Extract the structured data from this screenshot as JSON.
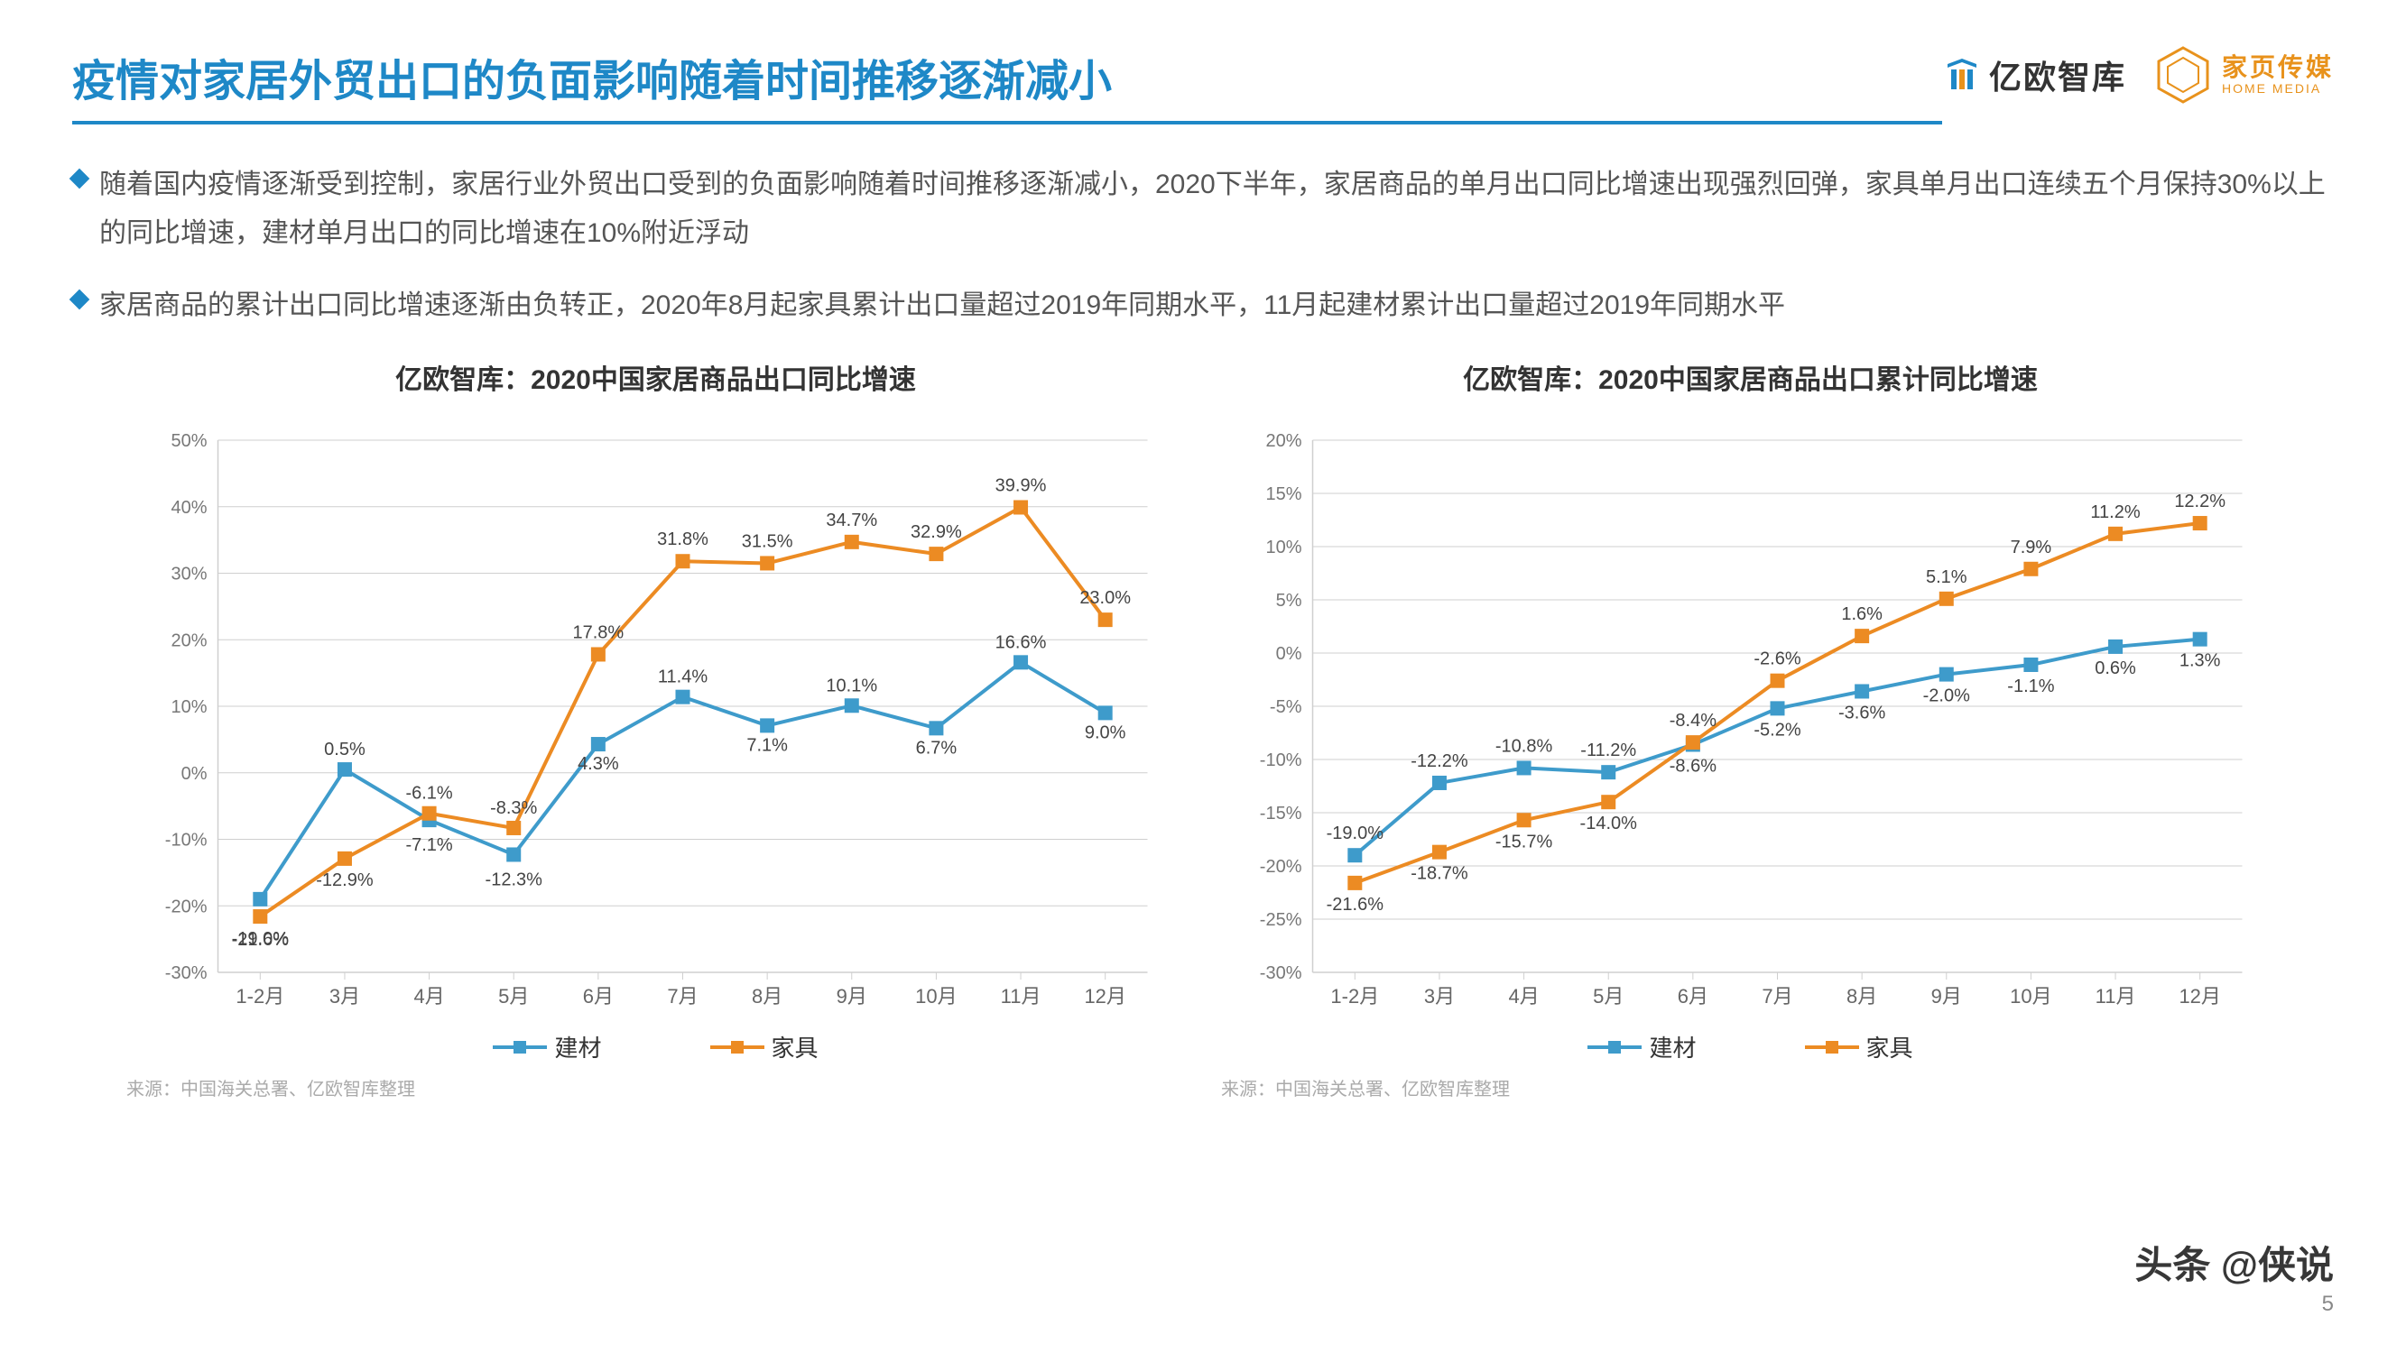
{
  "title": "疫情对家居外贸出口的负面影响随着时间推移逐渐减小",
  "logos": {
    "brand1_text": "亿欧智库",
    "brand2_cn": "家页传媒",
    "brand2_en": "HOME MEDIA"
  },
  "bullets": [
    "随着国内疫情逐渐受到控制，家居行业外贸出口受到的负面影响随着时间推移逐渐减小，2020下半年，家居商品的单月出口同比增速出现强烈回弹，家具单月出口连续五个月保持30%以上的同比增速，建材单月出口的同比增速在10%附近浮动",
    "家居商品的累计出口同比增速逐渐由负转正，2020年8月起家具累计出口量超过2019年同期水平，11月起建材累计出口量超过2019年同期水平"
  ],
  "charts": [
    {
      "title": "亿欧智库：2020中国家居商品出口同比增速",
      "type": "line",
      "categories": [
        "1-2月",
        "3月",
        "4月",
        "5月",
        "6月",
        "7月",
        "8月",
        "9月",
        "10月",
        "11月",
        "12月"
      ],
      "ymin": -30,
      "ymax": 50,
      "ystep": 10,
      "series": [
        {
          "name": "建材",
          "color": "#3E9BCB",
          "values": [
            -19.0,
            0.5,
            -7.1,
            -12.3,
            4.3,
            11.4,
            7.1,
            10.1,
            6.7,
            16.6,
            9.0
          ],
          "labels": [
            "-19.0%",
            "0.5%",
            "-7.1%",
            "-12.3%",
            "4.3%",
            "11.4%",
            "7.1%",
            "10.1%",
            "6.7%",
            "16.6%",
            "9.0%"
          ],
          "label_dy": [
            50,
            -16,
            34,
            34,
            28,
            -16,
            28,
            -16,
            28,
            -16,
            28
          ]
        },
        {
          "name": "家具",
          "color": "#EC8B23",
          "values": [
            -21.6,
            -12.9,
            -6.1,
            -8.3,
            17.8,
            31.8,
            31.5,
            34.7,
            32.9,
            39.9,
            23.0
          ],
          "labels": [
            "-21.6%",
            "-12.9%",
            "-6.1%",
            "-8.3%",
            "17.8%",
            "31.8%",
            "31.5%",
            "34.7%",
            "32.9%",
            "39.9%",
            "23.0%"
          ],
          "label_dy": [
            32,
            30,
            -16,
            -16,
            -18,
            -18,
            -18,
            -18,
            -18,
            -18,
            -18
          ]
        }
      ],
      "source": "来源：中国海关总署、亿欧智库整理"
    },
    {
      "title": "亿欧智库：2020中国家居商品出口累计同比增速",
      "type": "line",
      "categories": [
        "1-2月",
        "3月",
        "4月",
        "5月",
        "6月",
        "7月",
        "8月",
        "9月",
        "10月",
        "11月",
        "12月"
      ],
      "ymin": -30,
      "ymax": 20,
      "ystep": 5,
      "series": [
        {
          "name": "建材",
          "color": "#3E9BCB",
          "values": [
            -19.0,
            -12.2,
            -10.8,
            -11.2,
            -8.6,
            -5.2,
            -3.6,
            -2.0,
            -1.1,
            0.6,
            1.3
          ],
          "labels": [
            "-19.0%",
            "-12.2%",
            "-10.8%",
            "-11.2%",
            "-8.6%",
            "-5.2%",
            "-3.6%",
            "-2.0%",
            "-1.1%",
            "0.6%",
            "1.3%"
          ],
          "label_dy": [
            -18,
            -18,
            -18,
            -18,
            30,
            30,
            30,
            30,
            30,
            30,
            30
          ]
        },
        {
          "name": "家具",
          "color": "#EC8B23",
          "values": [
            -21.6,
            -18.7,
            -15.7,
            -14.0,
            -8.4,
            -2.6,
            1.6,
            5.1,
            7.9,
            11.2,
            12.2
          ],
          "labels": [
            "-21.6%",
            "-18.7%",
            "-15.7%",
            "-14.0%",
            "-8.4%",
            "-2.6%",
            "1.6%",
            "5.1%",
            "7.9%",
            "11.2%",
            "12.2%"
          ],
          "label_dy": [
            30,
            30,
            30,
            30,
            -18,
            -18,
            -18,
            -18,
            -18,
            -18,
            -18
          ]
        }
      ],
      "source": "来源：中国海关总署、亿欧智库整理"
    }
  ],
  "colors": {
    "title": "#1E88C7",
    "grid": "#CFCFCF",
    "axis": "#CFCFCF",
    "zero": "#666666"
  },
  "page_number": "5",
  "watermark": "头条 @侠说"
}
